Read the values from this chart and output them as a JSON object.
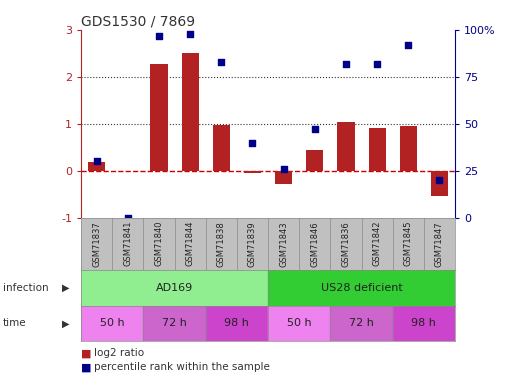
{
  "title": "GDS1530 / 7869",
  "samples": [
    "GSM71837",
    "GSM71841",
    "GSM71840",
    "GSM71844",
    "GSM71838",
    "GSM71839",
    "GSM71843",
    "GSM71846",
    "GSM71836",
    "GSM71842",
    "GSM71845",
    "GSM71847"
  ],
  "log2_ratio": [
    0.18,
    0.0,
    2.28,
    2.52,
    0.97,
    -0.06,
    -0.28,
    0.44,
    1.03,
    0.92,
    0.95,
    -0.55
  ],
  "percentile_rank": [
    30,
    0,
    97,
    98,
    83,
    40,
    26,
    47,
    82,
    82,
    92,
    20
  ],
  "bar_color": "#b22222",
  "dot_color": "#00008b",
  "zero_line_color": "#cc0000",
  "dotted_line_color": "#333333",
  "ylim_left": [
    -1,
    3
  ],
  "ylim_right": [
    0,
    100
  ],
  "yticks_left": [
    -1,
    0,
    1,
    2,
    3
  ],
  "yticks_right": [
    0,
    25,
    50,
    75,
    100
  ],
  "yticklabels_right": [
    "0",
    "25",
    "50",
    "75",
    "100%"
  ],
  "infection_color_ad169": "#90ee90",
  "infection_color_us28": "#32cd32",
  "time_color_50h": "#ee82ee",
  "time_color_72h": "#cc66cc",
  "time_color_98h": "#cc44cc",
  "legend_bar_label": "log2 ratio",
  "legend_dot_label": "percentile rank within the sample",
  "bg_color": "#ffffff",
  "sample_row_color": "#c0c0c0"
}
